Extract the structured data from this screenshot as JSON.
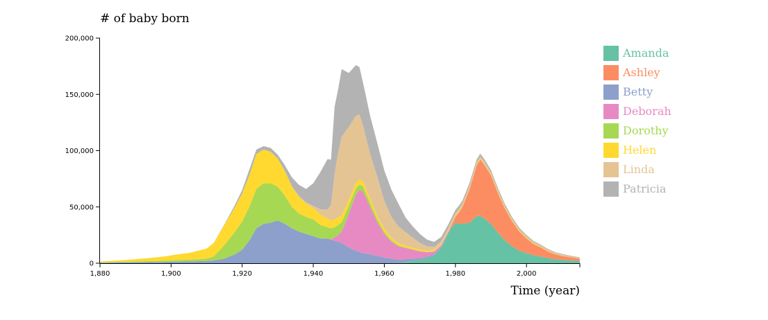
{
  "chart_data": {
    "type": "area",
    "stacked": true,
    "ylabel": "# of baby born",
    "xlabel": "Time (year)",
    "xlim": [
      1880,
      2015
    ],
    "ylim": [
      0,
      200000
    ],
    "x_ticks": [
      1880,
      1900,
      1920,
      1940,
      1960,
      1980,
      2000
    ],
    "x_tick_labels": [
      "1,880",
      "1,900",
      "1,920",
      "1,940",
      "1,960",
      "1,980",
      "2,000"
    ],
    "y_ticks": [
      0,
      50000,
      100000,
      150000,
      200000
    ],
    "y_tick_labels": [
      "0",
      "50,000",
      "100,000",
      "150,000",
      "200,000"
    ],
    "legend_position": "right",
    "x": [
      1880,
      1885,
      1890,
      1895,
      1899,
      1900,
      1901,
      1905,
      1910,
      1912,
      1915,
      1918,
      1920,
      1922,
      1924,
      1926,
      1928,
      1930,
      1932,
      1934,
      1936,
      1938,
      1940,
      1942,
      1944,
      1945,
      1946,
      1947,
      1948,
      1950,
      1952,
      1953,
      1954,
      1956,
      1958,
      1960,
      1962,
      1964,
      1966,
      1968,
      1970,
      1972,
      1974,
      1976,
      1978,
      1979,
      1980,
      1981,
      1982,
      1984,
      1986,
      1987,
      1988,
      1990,
      1992,
      1994,
      1996,
      1998,
      2000,
      2002,
      2004,
      2006,
      2008,
      2010,
      2012,
      2015
    ],
    "series": [
      {
        "name": "Amanda",
        "color": "#66c2a5",
        "values": [
          0,
          0,
          0,
          0,
          0,
          0,
          0,
          0,
          0,
          0,
          0,
          0,
          0,
          0,
          0,
          0,
          0,
          0,
          0,
          0,
          0,
          0,
          0,
          0,
          0,
          0,
          0,
          0,
          0,
          0,
          0,
          0,
          0,
          0,
          0,
          0,
          0,
          0,
          1000,
          2000,
          3000,
          4500,
          7000,
          14000,
          27000,
          32000,
          36000,
          35000,
          35000,
          36000,
          42000,
          42000,
          40000,
          35000,
          27000,
          20000,
          15000,
          11000,
          9000,
          7000,
          6000,
          4500,
          3500,
          3000,
          2500,
          2000
        ]
      },
      {
        "name": "Ashley",
        "color": "#fc8d62",
        "values": [
          0,
          0,
          0,
          0,
          0,
          0,
          0,
          0,
          0,
          0,
          0,
          0,
          0,
          0,
          0,
          0,
          0,
          0,
          0,
          0,
          0,
          0,
          0,
          0,
          0,
          0,
          0,
          0,
          0,
          0,
          0,
          0,
          0,
          0,
          0,
          0,
          0,
          0,
          0,
          0,
          0,
          0,
          0,
          0,
          0,
          2000,
          5000,
          10000,
          15000,
          30000,
          45000,
          50000,
          48000,
          43000,
          35000,
          28000,
          22000,
          17000,
          13000,
          10000,
          8000,
          6000,
          4500,
          3500,
          3000,
          2000
        ]
      },
      {
        "name": "Betty",
        "color": "#8da0cb",
        "values": [
          400,
          600,
          800,
          1000,
          1200,
          1300,
          1400,
          1600,
          2000,
          2500,
          4000,
          8000,
          12000,
          20000,
          31000,
          35000,
          36000,
          38000,
          35000,
          31000,
          28000,
          26000,
          24000,
          22000,
          22000,
          21000,
          20000,
          19000,
          18000,
          14000,
          11000,
          10000,
          9000,
          8000,
          6500,
          5000,
          4000,
          3000,
          2500,
          2000,
          1500,
          1200,
          800,
          500,
          300,
          200,
          150,
          100,
          100,
          80,
          60,
          50,
          50,
          40,
          30,
          20,
          10,
          0,
          0,
          0,
          0,
          0,
          0,
          0,
          0,
          0
        ]
      },
      {
        "name": "Deborah",
        "color": "#e78ac3",
        "values": [
          0,
          0,
          0,
          0,
          0,
          0,
          0,
          0,
          0,
          0,
          0,
          0,
          0,
          0,
          0,
          0,
          0,
          0,
          0,
          0,
          0,
          0,
          0,
          0,
          0,
          0,
          3000,
          6000,
          10000,
          30000,
          50000,
          55000,
          55000,
          42000,
          30000,
          21000,
          15000,
          12000,
          10000,
          8000,
          6000,
          4000,
          2500,
          1500,
          900,
          700,
          500,
          400,
          300,
          250,
          200,
          200,
          150,
          100,
          80,
          60,
          50,
          40,
          30,
          20,
          10,
          0,
          0,
          0,
          0,
          0
        ]
      },
      {
        "name": "Dorothy",
        "color": "#a6d854",
        "values": [
          300,
          500,
          700,
          900,
          1100,
          1200,
          1300,
          1500,
          2000,
          3500,
          12000,
          20000,
          25000,
          30000,
          35000,
          36000,
          35000,
          30000,
          25000,
          19000,
          16000,
          15000,
          15000,
          12000,
          10000,
          10000,
          9000,
          9000,
          8500,
          7000,
          5500,
          5000,
          4500,
          3500,
          2500,
          1800,
          1200,
          800,
          500,
          400,
          300,
          200,
          150,
          100,
          80,
          60,
          50,
          40,
          30,
          20,
          10,
          10,
          10,
          0,
          0,
          0,
          0,
          0,
          0,
          0,
          0,
          0,
          0,
          0,
          0,
          0
        ]
      },
      {
        "name": "Helen",
        "color": "#ffd92f",
        "values": [
          800,
          1200,
          2000,
          3000,
          4000,
          4500,
          4800,
          6000,
          9000,
          12000,
          18000,
          22000,
          25000,
          28000,
          31000,
          30000,
          28000,
          25000,
          22000,
          18000,
          15000,
          12000,
          10000,
          9000,
          7500,
          7000,
          7000,
          6500,
          6000,
          5000,
          4500,
          4200,
          4000,
          3500,
          3000,
          2500,
          2000,
          1800,
          1500,
          1300,
          1200,
          1100,
          1000,
          900,
          850,
          800,
          800,
          800,
          800,
          800,
          750,
          750,
          700,
          700,
          650,
          600,
          550,
          500,
          450,
          400,
          350,
          300,
          250,
          200,
          150,
          100
        ]
      },
      {
        "name": "Linda",
        "color": "#e5c494",
        "values": [
          0,
          0,
          0,
          0,
          0,
          0,
          0,
          0,
          0,
          0,
          0,
          0,
          0,
          0,
          0,
          0,
          0,
          0,
          100,
          200,
          500,
          1000,
          2000,
          5000,
          8000,
          14000,
          40000,
          58000,
          70000,
          65000,
          60000,
          58000,
          50000,
          40000,
          35000,
          25000,
          19000,
          15000,
          12000,
          9000,
          6000,
          4000,
          3000,
          2500,
          2200,
          2100,
          2000,
          2000,
          2000,
          2000,
          2000,
          2000,
          2000,
          2000,
          1900,
          1800,
          1700,
          1600,
          1500,
          1400,
          1300,
          1200,
          1100,
          1000,
          900,
          800
        ]
      },
      {
        "name": "Patricia",
        "color": "#b3b3b3",
        "values": [
          0,
          0,
          0,
          0,
          0,
          0,
          0,
          0,
          0,
          100,
          500,
          2000,
          3000,
          5000,
          4000,
          3000,
          3500,
          3500,
          5000,
          8000,
          10000,
          12000,
          20000,
          33000,
          45000,
          40000,
          60000,
          56000,
          60000,
          48000,
          45000,
          42000,
          38000,
          34000,
          30000,
          27000,
          24000,
          20000,
          13000,
          10000,
          8000,
          6000,
          4500,
          3800,
          3100,
          3000,
          2800,
          2700,
          2600,
          2500,
          2400,
          2300,
          2200,
          2000,
          1800,
          1600,
          1400,
          1200,
          1000,
          900,
          800,
          700,
          600,
          500,
          400,
          300
        ]
      }
    ]
  }
}
